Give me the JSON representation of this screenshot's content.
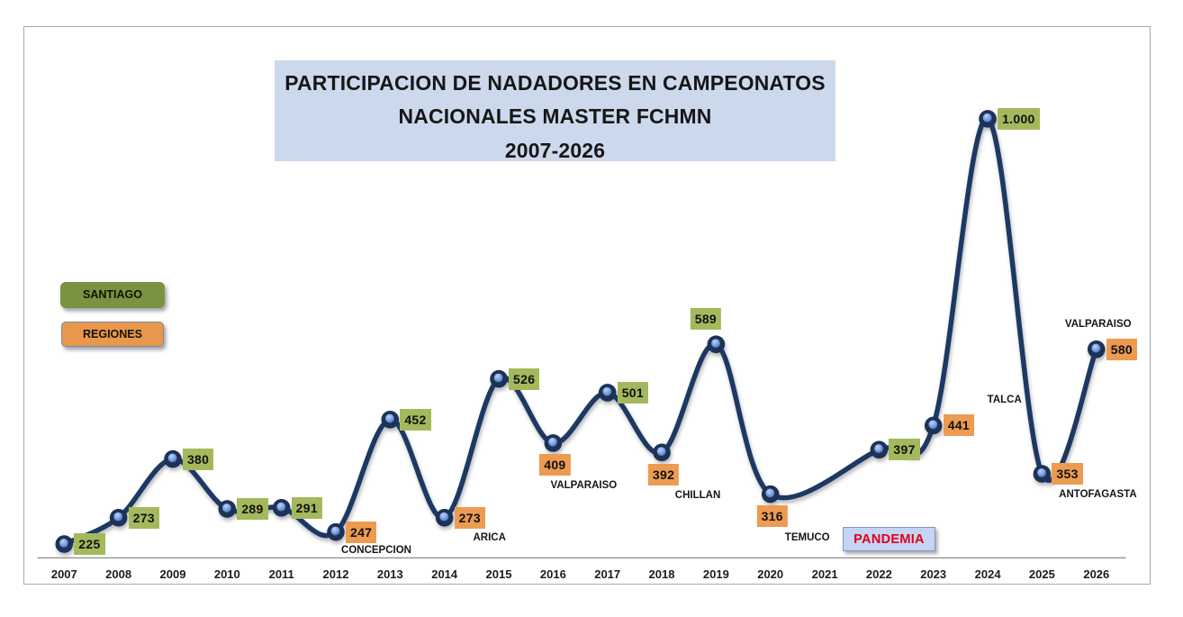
{
  "chart_data": {
    "type": "line",
    "title": "PARTICIPACION DE NADADORES EN CAMPEONATOS NACIONALES MASTER FCHMN 2007-2026",
    "title_lines": [
      "PARTICIPACION DE NADADORES EN CAMPEONATOS",
      "NACIONALES MASTER FCHMN",
      "2007-2026"
    ],
    "xlabel": "",
    "ylabel": "",
    "categories": [
      "2007",
      "2008",
      "2009",
      "2010",
      "2011",
      "2012",
      "2013",
      "2014",
      "2015",
      "2016",
      "2017",
      "2018",
      "2019",
      "2020",
      "2021",
      "2022",
      "2023",
      "2024",
      "2025",
      "2026"
    ],
    "values": [
      225,
      273,
      380,
      289,
      291,
      247,
      452,
      273,
      526,
      409,
      501,
      392,
      589,
      316,
      null,
      397,
      441,
      1000,
      353,
      580
    ],
    "points": [
      {
        "year": "2007",
        "value": 225,
        "label": "225",
        "group": "santiago"
      },
      {
        "year": "2008",
        "value": 273,
        "label": "273",
        "group": "santiago"
      },
      {
        "year": "2009",
        "value": 380,
        "label": "380",
        "group": "santiago"
      },
      {
        "year": "2010",
        "value": 289,
        "label": "289",
        "group": "santiago"
      },
      {
        "year": "2011",
        "value": 291,
        "label": "291",
        "group": "santiago"
      },
      {
        "year": "2012",
        "value": 247,
        "label": "247",
        "group": "regiones",
        "city": "CONCEPCION"
      },
      {
        "year": "2013",
        "value": 452,
        "label": "452",
        "group": "santiago"
      },
      {
        "year": "2014",
        "value": 273,
        "label": "273",
        "group": "regiones",
        "city": "ARICA"
      },
      {
        "year": "2015",
        "value": 526,
        "label": "526",
        "group": "santiago"
      },
      {
        "year": "2016",
        "value": 409,
        "label": "409",
        "group": "regiones",
        "city": "VALPARAISO"
      },
      {
        "year": "2017",
        "value": 501,
        "label": "501",
        "group": "santiago"
      },
      {
        "year": "2018",
        "value": 392,
        "label": "392",
        "group": "regiones",
        "city": "CHILLAN"
      },
      {
        "year": "2019",
        "value": 589,
        "label": "589",
        "group": "santiago"
      },
      {
        "year": "2020",
        "value": 316,
        "label": "316",
        "group": "regiones",
        "city": "TEMUCO"
      },
      {
        "year": "2021",
        "value": null,
        "label": null,
        "group": null
      },
      {
        "year": "2022",
        "value": 397,
        "label": "397",
        "group": "santiago"
      },
      {
        "year": "2023",
        "value": 441,
        "label": "441",
        "group": "regiones",
        "city": "TALCA"
      },
      {
        "year": "2024",
        "value": 1000,
        "label": "1.000",
        "group": "santiago"
      },
      {
        "year": "2025",
        "value": 353,
        "label": "353",
        "group": "regiones",
        "city": "ANTOFAGASTA"
      },
      {
        "year": "2026",
        "value": 580,
        "label": "580",
        "group": "regiones",
        "city": "VALPARAISO"
      }
    ],
    "legend": [
      {
        "label": "SANTIAGO",
        "color": "#7a9342"
      },
      {
        "label": "REGIONES",
        "color": "#e9974c"
      }
    ],
    "annotation": {
      "text": "PANDEMIA",
      "text_color": "#e00018",
      "bg_color": "#c5d4f3"
    },
    "colors": {
      "line": "#1f3864",
      "marker_ring": "#1c3057",
      "marker_fill": "#7fa3e0",
      "santiago_label_bg": "#a4b95c",
      "regiones_label_bg": "#ec9b51",
      "title_bg": "#ccd8ec"
    },
    "axis": {
      "x_min": 2007,
      "x_max": 2026,
      "y_min": 200,
      "y_max": 1000,
      "grid": false,
      "y_axis_visible": false,
      "legend_position": "left"
    }
  }
}
